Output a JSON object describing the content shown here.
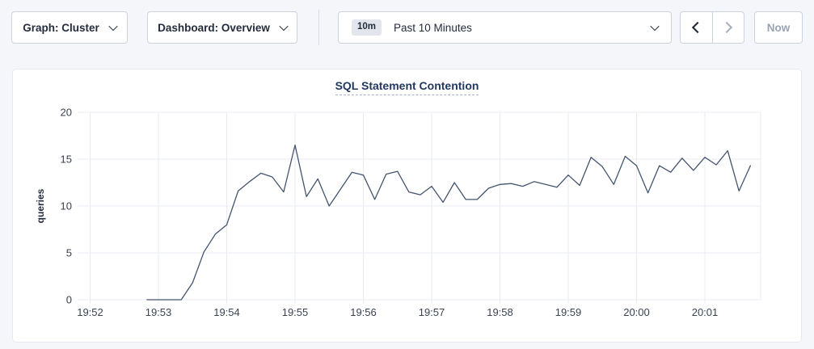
{
  "toolbar": {
    "graph_label": "Graph: Cluster",
    "dashboard_label": "Dashboard: Overview",
    "time_badge": "10m",
    "time_label": "Past 10 Minutes",
    "now_label": "Now",
    "icons": {
      "chevron_down": "⌄",
      "chevron_left": "‹",
      "chevron_right": "›"
    }
  },
  "colors": {
    "title_navy": "#22385f",
    "series_line": "#44546f",
    "disabled_text": "#9aa3b3",
    "badge_bg": "#e2e5ec"
  },
  "chart_data": {
    "type": "line",
    "title": "SQL Statement Contention",
    "ylabel": "queries",
    "ylim": [
      0,
      20
    ],
    "yticks": [
      0,
      5,
      10,
      15,
      20
    ],
    "xticks": [
      "19:52",
      "19:53",
      "19:54",
      "19:55",
      "19:56",
      "19:57",
      "19:58",
      "19:59",
      "20:00",
      "20:01"
    ],
    "x_window": [
      "19:51:49",
      "20:01:49"
    ],
    "grid": true,
    "legend": "none",
    "series": [
      {
        "name": "queries",
        "color": "#44546f",
        "start": "19:52:50",
        "interval_seconds": 10,
        "values": [
          0,
          0,
          0,
          0,
          1.8,
          5.1,
          7.0,
          8.0,
          11.6,
          12.6,
          13.5,
          13.1,
          11.5,
          16.5,
          11.0,
          12.9,
          10.0,
          11.8,
          13.6,
          13.3,
          10.7,
          13.4,
          13.7,
          11.5,
          11.2,
          12.1,
          10.4,
          12.5,
          10.7,
          10.7,
          11.9,
          12.3,
          12.4,
          12.1,
          12.6,
          12.3,
          12.0,
          13.3,
          12.2,
          15.2,
          14.2,
          12.3,
          15.3,
          14.3,
          11.4,
          14.3,
          13.6,
          15.1,
          13.8,
          15.2,
          14.4,
          15.9,
          11.6,
          14.3
        ]
      }
    ]
  }
}
